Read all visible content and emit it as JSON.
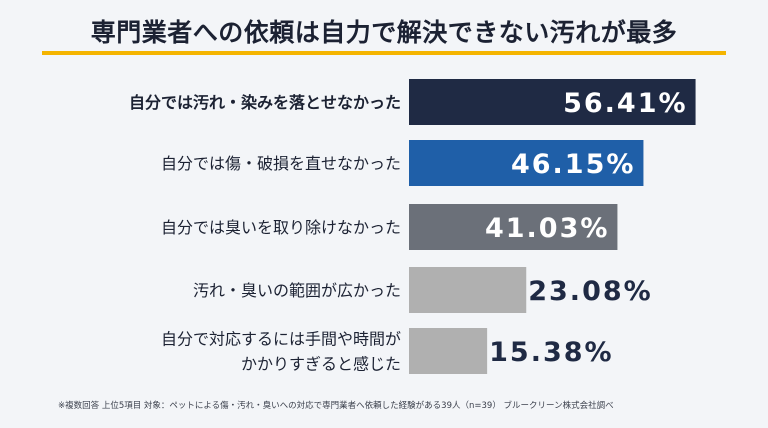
{
  "title": "専門業者への依頼は自力で解決できない汚れが最多",
  "chart_data": {
    "type": "bar",
    "orientation": "horizontal",
    "categories": [
      "自分では汚れ・染みを落とせなかった",
      "自分では傷・破損を直せなかった",
      "自分では臭いを取り除けなかった",
      "汚れ・臭いの範囲が広かった",
      "自分で対応するには手間や時間が\nかかりすぎると感じた"
    ],
    "values": [
      56.41,
      46.15,
      41.03,
      23.08,
      15.38
    ],
    "value_labels": [
      "56.41%",
      "46.15%",
      "41.03%",
      "23.08%",
      "15.38%"
    ],
    "unit": "%",
    "bar_colors": [
      "#1f2a44",
      "#1f5fa8",
      "#6b7079",
      "#b0b0b0",
      "#b0b0b0"
    ],
    "label_colors": [
      "#ffffff",
      "#ffffff",
      "#ffffff",
      "#1f2a44",
      "#1f2a44"
    ],
    "bold_first_label": true
  },
  "footnote": "※複数回答 上位5項目 対象：ペットによる傷・汚れ・臭いへの対応で専門業者へ依頼した経験がある39人（n=39） ブルークリーン株式会社調べ",
  "colors": {
    "accent": "#f4b400",
    "background": "#f3f5f8",
    "text": "#1c2233"
  }
}
